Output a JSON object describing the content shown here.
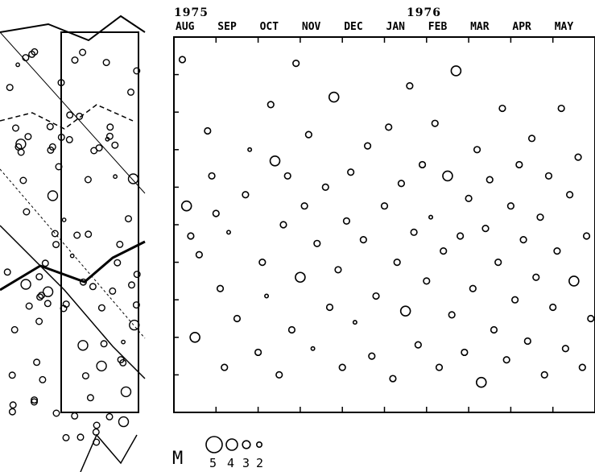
{
  "chart_data": {
    "type": "scatter",
    "title": "",
    "year_labels": [
      "1975",
      "1976"
    ],
    "month_labels": [
      "AUG",
      "SEP",
      "OCT",
      "NOV",
      "DEC",
      "JAN",
      "FEB",
      "MAR",
      "APR",
      "MAY"
    ],
    "legend": {
      "label": "M",
      "magnitudes": [
        5,
        4,
        3,
        2
      ]
    },
    "x_unit": "months since Aug 1975",
    "xlim": [
      0,
      10
    ],
    "ylim": [
      0,
      1
    ],
    "grid": false,
    "series": [
      {
        "name": "earthquakes",
        "points": [
          [
            0.2,
            0.94,
            3
          ],
          [
            0.3,
            0.55,
            4
          ],
          [
            0.4,
            0.47,
            3
          ],
          [
            0.5,
            0.2,
            4
          ],
          [
            0.6,
            0.42,
            3
          ],
          [
            0.8,
            0.75,
            3
          ],
          [
            0.9,
            0.63,
            3
          ],
          [
            1.0,
            0.53,
            3
          ],
          [
            1.1,
            0.33,
            3
          ],
          [
            1.2,
            0.12,
            3
          ],
          [
            1.3,
            0.48,
            2
          ],
          [
            1.5,
            0.25,
            3
          ],
          [
            1.7,
            0.58,
            3
          ],
          [
            1.8,
            0.7,
            2
          ],
          [
            2.0,
            0.16,
            3
          ],
          [
            2.1,
            0.4,
            3
          ],
          [
            2.2,
            0.31,
            2
          ],
          [
            2.3,
            0.82,
            3
          ],
          [
            2.4,
            0.67,
            4
          ],
          [
            2.5,
            0.1,
            3
          ],
          [
            2.6,
            0.5,
            3
          ],
          [
            2.7,
            0.63,
            3
          ],
          [
            2.8,
            0.22,
            3
          ],
          [
            2.9,
            0.93,
            3
          ],
          [
            3.0,
            0.36,
            4
          ],
          [
            3.1,
            0.55,
            3
          ],
          [
            3.2,
            0.74,
            3
          ],
          [
            3.3,
            0.17,
            2
          ],
          [
            3.4,
            0.45,
            3
          ],
          [
            3.6,
            0.6,
            3
          ],
          [
            3.7,
            0.28,
            3
          ],
          [
            3.8,
            0.84,
            4
          ],
          [
            3.9,
            0.38,
            3
          ],
          [
            4.0,
            0.12,
            3
          ],
          [
            4.1,
            0.51,
            3
          ],
          [
            4.2,
            0.64,
            3
          ],
          [
            4.3,
            0.24,
            2
          ],
          [
            4.5,
            0.46,
            3
          ],
          [
            4.6,
            0.71,
            3
          ],
          [
            4.7,
            0.15,
            3
          ],
          [
            4.8,
            0.31,
            3
          ],
          [
            5.0,
            0.55,
            3
          ],
          [
            5.1,
            0.76,
            3
          ],
          [
            5.2,
            0.09,
            3
          ],
          [
            5.3,
            0.4,
            3
          ],
          [
            5.4,
            0.61,
            3
          ],
          [
            5.5,
            0.27,
            4
          ],
          [
            5.6,
            0.87,
            3
          ],
          [
            5.7,
            0.48,
            3
          ],
          [
            5.8,
            0.18,
            3
          ],
          [
            5.9,
            0.66,
            3
          ],
          [
            6.0,
            0.35,
            3
          ],
          [
            6.1,
            0.52,
            2
          ],
          [
            6.2,
            0.77,
            3
          ],
          [
            6.3,
            0.12,
            3
          ],
          [
            6.4,
            0.43,
            3
          ],
          [
            6.5,
            0.63,
            4
          ],
          [
            6.6,
            0.26,
            3
          ],
          [
            6.7,
            0.91,
            4
          ],
          [
            6.8,
            0.47,
            3
          ],
          [
            6.9,
            0.16,
            3
          ],
          [
            7.0,
            0.57,
            3
          ],
          [
            7.1,
            0.33,
            3
          ],
          [
            7.2,
            0.7,
            3
          ],
          [
            7.3,
            0.08,
            4
          ],
          [
            7.4,
            0.49,
            3
          ],
          [
            7.5,
            0.62,
            3
          ],
          [
            7.6,
            0.22,
            3
          ],
          [
            7.7,
            0.4,
            3
          ],
          [
            7.8,
            0.81,
            3
          ],
          [
            7.9,
            0.14,
            3
          ],
          [
            8.0,
            0.55,
            3
          ],
          [
            8.1,
            0.3,
            3
          ],
          [
            8.2,
            0.66,
            3
          ],
          [
            8.3,
            0.46,
            3
          ],
          [
            8.4,
            0.19,
            3
          ],
          [
            8.5,
            0.73,
            3
          ],
          [
            8.6,
            0.36,
            3
          ],
          [
            8.7,
            0.52,
            3
          ],
          [
            8.8,
            0.1,
            3
          ],
          [
            8.9,
            0.63,
            3
          ],
          [
            9.0,
            0.28,
            3
          ],
          [
            9.1,
            0.43,
            3
          ],
          [
            9.2,
            0.81,
            3
          ],
          [
            9.3,
            0.17,
            3
          ],
          [
            9.4,
            0.58,
            3
          ],
          [
            9.5,
            0.35,
            4
          ],
          [
            9.6,
            0.68,
            3
          ],
          [
            9.7,
            0.12,
            3
          ],
          [
            9.8,
            0.47,
            3
          ],
          [
            9.9,
            0.25,
            3
          ]
        ]
      }
    ]
  },
  "map_panel": {
    "description_free": true
  }
}
